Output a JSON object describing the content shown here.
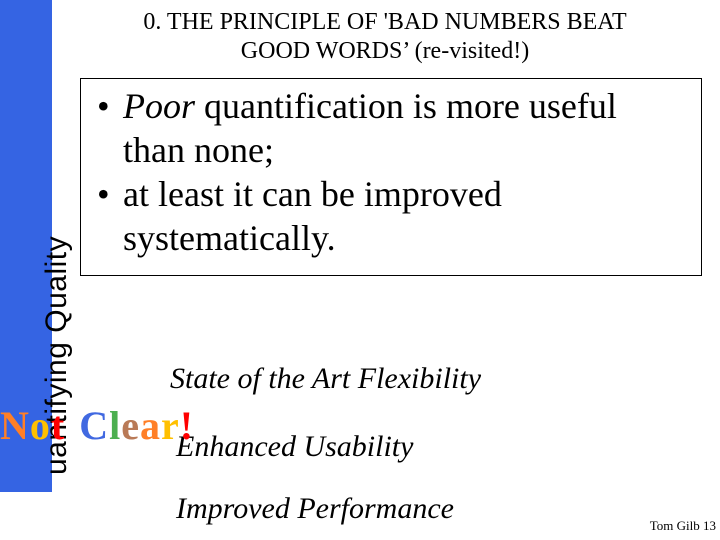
{
  "colors": {
    "sidebar_bg": "#3564e3",
    "page_bg": "#ffffff",
    "text": "#000000",
    "notclear_palette": [
      "#ff7f27",
      "#ffc000",
      "#ff0000",
      "#4169e1",
      "#4caf50",
      "#b97a57",
      "#ff7f27",
      "#ffc000",
      "#ff0000"
    ]
  },
  "fonts": {
    "title_pt": 24,
    "bullet_pt": 36,
    "phrase_pt": 30,
    "side_label_pt": 30,
    "notclear_pt": 40,
    "pagenum_pt": 13
  },
  "title": {
    "line1": "0. THE PRINCIPLE OF 'BAD NUMBERS BEAT",
    "line2": "GOOD WORDS’ (re-visited!)"
  },
  "side_label": "uantifying Quality",
  "bullets": {
    "b1_prefix_italic": "Poor",
    "b1_rest": " quantification is more useful than none;",
    "b2": "at least it can be improved systematically."
  },
  "phrases": {
    "p1": "State of the Art Flexibility",
    "p2": "Enhanced Usability",
    "p3": "Improved Performance"
  },
  "notclear": {
    "letters": [
      "N",
      "o",
      "t",
      " ",
      "C",
      "l",
      "e",
      "a",
      "r",
      "!"
    ]
  },
  "footer": "Tom Gilb 13"
}
